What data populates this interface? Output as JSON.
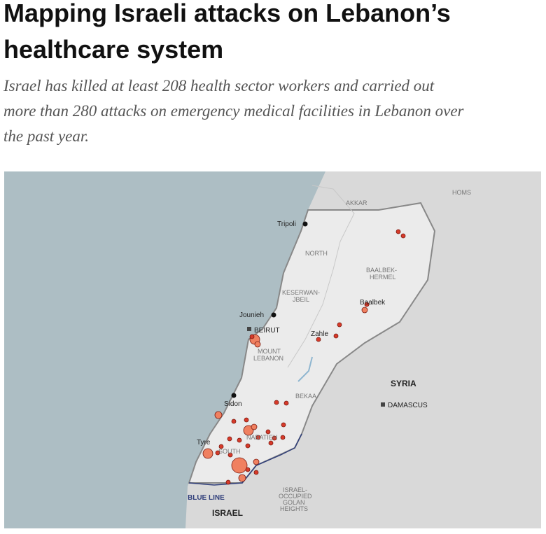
{
  "header": {
    "title_lines": [
      "Mapping Israeli attacks on Lebanon’s",
      "healthcare system"
    ],
    "subtitle_lines": [
      "Israel has killed at least 208 health sector workers and carried out",
      "more than 280 attacks on emergency medical facilities in Lebanon over",
      "the past year."
    ]
  },
  "map": {
    "labels": {
      "homs": "HOMS",
      "akkar": "AKKAR",
      "tripoli": "Tripoli",
      "north": "NORTH",
      "baalbek_hermel": [
        "BAALBEK-",
        "HERMEL"
      ],
      "keserwan": [
        "KESERWAN-",
        "JBEIL"
      ],
      "jounieh": "Jounieh",
      "baalbek": "Baalbek",
      "beirut": "BEIRUT",
      "zahle": "Zahle",
      "mount_lebanon": [
        "MOUNT",
        "LEBANON"
      ],
      "syria": "SYRIA",
      "damascus": "DAMASCUS",
      "sidon": "Sidon",
      "bekaa": "BEKAA",
      "nabatieh": "NABATIEH",
      "south": "SOUTH",
      "tyre": "Tyre",
      "blue_line": "BLUE LINE",
      "israel": "ISRAEL",
      "golan": [
        "ISRAEL-",
        "OCCUPIED",
        "GOLAN",
        "HEIGHTS"
      ]
    }
  }
}
